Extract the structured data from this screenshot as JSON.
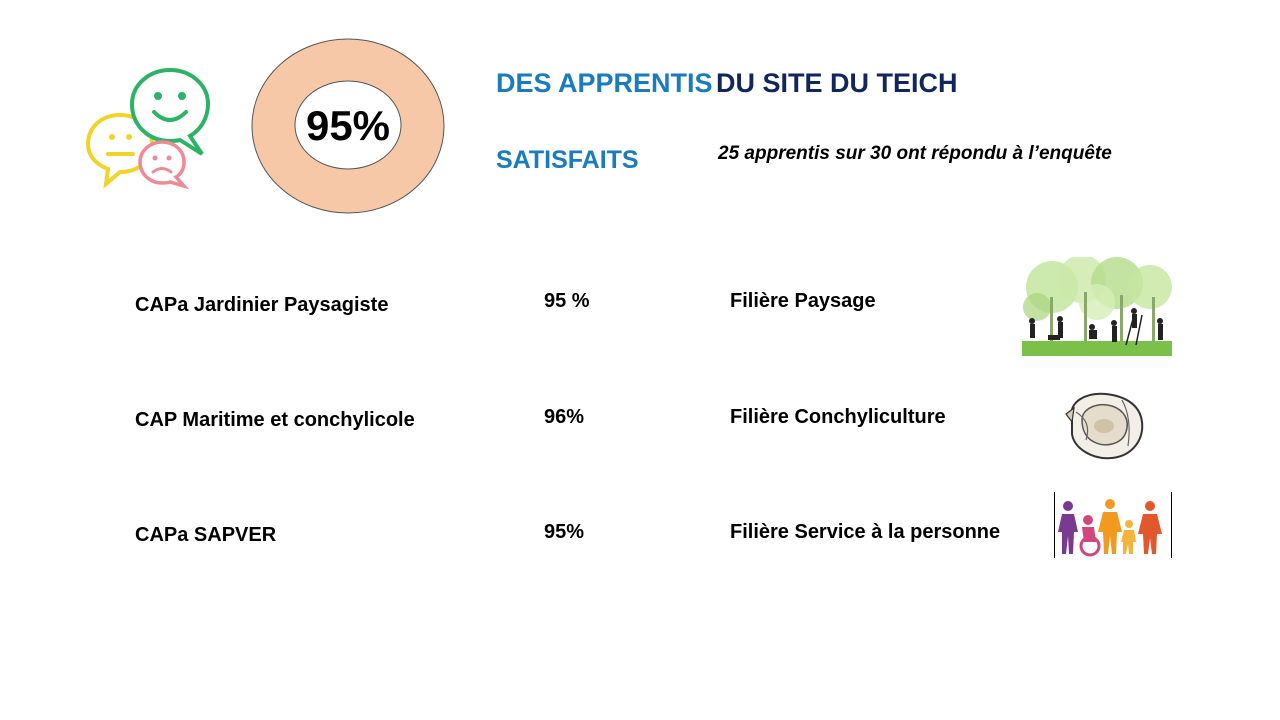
{
  "header": {
    "donut_value": "95%",
    "donut_fraction": 0.95,
    "title_part1": "DES APPRENTIS",
    "title_part2": "DU SITE DU TEICH",
    "subtitle": "SATISFAITS",
    "survey_note": "25 apprentis sur 30 ont répondu à l’enquête"
  },
  "colors": {
    "title_blue": "#1a7bbf",
    "title_navy": "#12265e",
    "donut_fill": "#f7c8a7"
  },
  "icons": {
    "feedback": "satisfaction-smileys-icon",
    "row_pictures": [
      "landscape-gardeners-picture",
      "oyster-picture",
      "family-people-picture"
    ]
  },
  "rows": [
    {
      "course": "CAPa Jardinier Paysagiste",
      "rate": "95 %",
      "sector": "Filière Paysage"
    },
    {
      "course": "CAP Maritime et conchylicole",
      "rate": "96%",
      "sector": "Filière Conchyliculture"
    },
    {
      "course": "CAPa SAPVER",
      "rate": "95%",
      "sector": "Filière Service à la personne"
    }
  ]
}
